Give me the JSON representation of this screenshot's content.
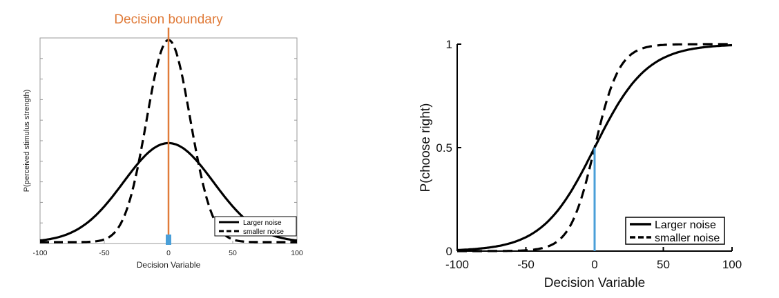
{
  "chart_data": [
    {
      "type": "line",
      "title": "Decision boundary",
      "xlabel": "Decision Variable",
      "ylabel": "P(perceived stimulus strength)",
      "xlim": [
        -100,
        100
      ],
      "x_ticks": [
        "-100",
        "-50",
        "0",
        "50",
        "100"
      ],
      "y_ticks_labeled": false,
      "legend_position": "lower-right",
      "series": [
        {
          "name": "Larger noise",
          "style": "solid",
          "distribution": "gaussian",
          "mean": 0,
          "sd": 35,
          "peak_relative": 0.49
        },
        {
          "name": "smaller noise",
          "style": "dashed",
          "distribution": "gaussian",
          "mean": 0,
          "sd": 17,
          "peak_relative": 1.0
        }
      ],
      "annotations": [
        {
          "label": "Decision boundary",
          "x": 0,
          "color": "#e07b39"
        },
        {
          "marker": "criterion",
          "x": 0,
          "color": "#4a9fd8"
        }
      ]
    },
    {
      "type": "line",
      "xlabel": "Decision Variable",
      "ylabel": "P(choose right)",
      "xlim": [
        -100,
        100
      ],
      "ylim": [
        0,
        1
      ],
      "x_ticks": [
        "-100",
        "-50",
        "0",
        "50",
        "100"
      ],
      "y_ticks": [
        "0",
        "0.5",
        "1"
      ],
      "legend_position": "lower-right",
      "series": [
        {
          "name": "Larger noise",
          "style": "solid",
          "function": "logistic",
          "scale": 19
        },
        {
          "name": "smaller noise",
          "style": "dashed",
          "function": "logistic",
          "scale": 9
        }
      ],
      "annotations": [
        {
          "marker": "vertical-line",
          "x": 0,
          "y_to": 0.5,
          "color": "#4a9fd8"
        }
      ]
    }
  ]
}
